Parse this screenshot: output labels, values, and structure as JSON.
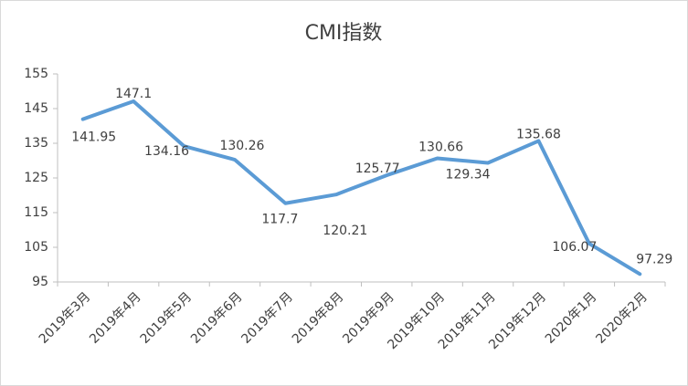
{
  "chart_data": {
    "type": "line",
    "title": "CMI指数",
    "categories": [
      "2019年3月",
      "2019年4月",
      "2019年5月",
      "2019年6月",
      "2019年7月",
      "2019年8月",
      "2019年9月",
      "2019年10月",
      "2019年11月",
      "2019年12月",
      "2020年1月",
      "2020年2月"
    ],
    "values": [
      141.95,
      147.1,
      134.16,
      130.26,
      117.7,
      120.21,
      125.77,
      130.66,
      129.34,
      135.68,
      106.07,
      97.29
    ],
    "color": "#5b9bd5",
    "ylim": [
      95,
      155
    ],
    "yticks": [
      95,
      105,
      115,
      125,
      135,
      145,
      155
    ],
    "grid": false
  }
}
